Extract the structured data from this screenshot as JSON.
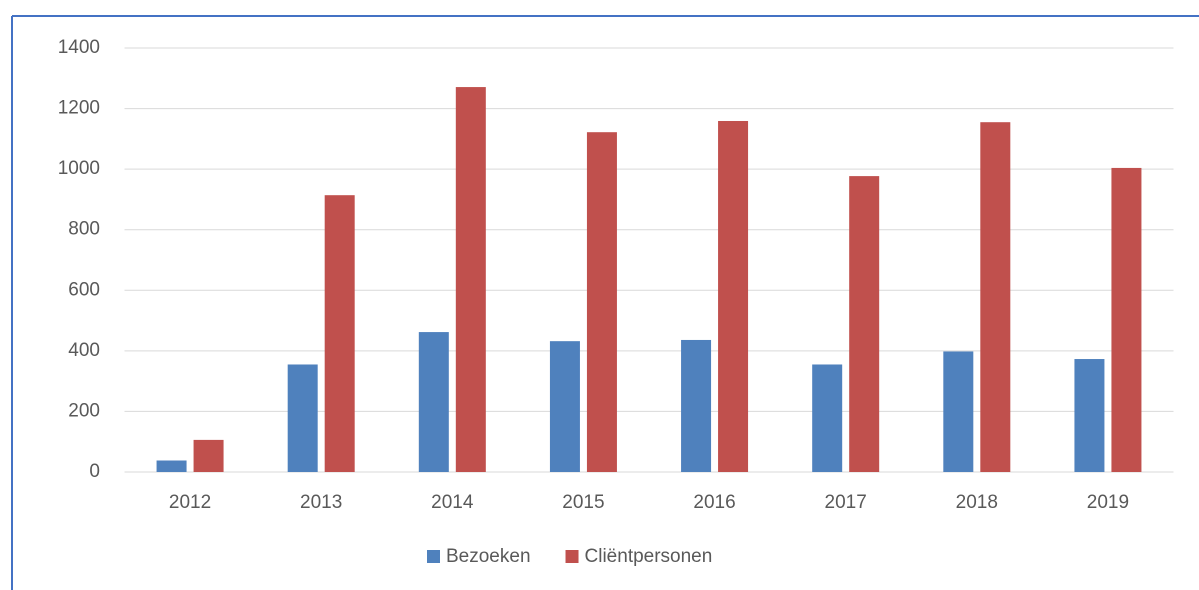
{
  "chart_data": {
    "type": "bar",
    "categories": [
      "2012",
      "2013",
      "2014",
      "2015",
      "2016",
      "2017",
      "2018",
      "2019"
    ],
    "series": [
      {
        "name": "Bezoeken",
        "color": "#4f81bd",
        "values": [
          38,
          355,
          462,
          432,
          436,
          355,
          398,
          373
        ]
      },
      {
        "name": "Cliëntpersonen",
        "color": "#c0504d",
        "values": [
          106,
          914,
          1271,
          1122,
          1159,
          977,
          1155,
          1004
        ]
      }
    ],
    "ylim": [
      0,
      1400
    ],
    "yticks": [
      0,
      200,
      400,
      600,
      800,
      1000,
      1200,
      1400
    ],
    "grid": true,
    "legend": "bottom"
  }
}
